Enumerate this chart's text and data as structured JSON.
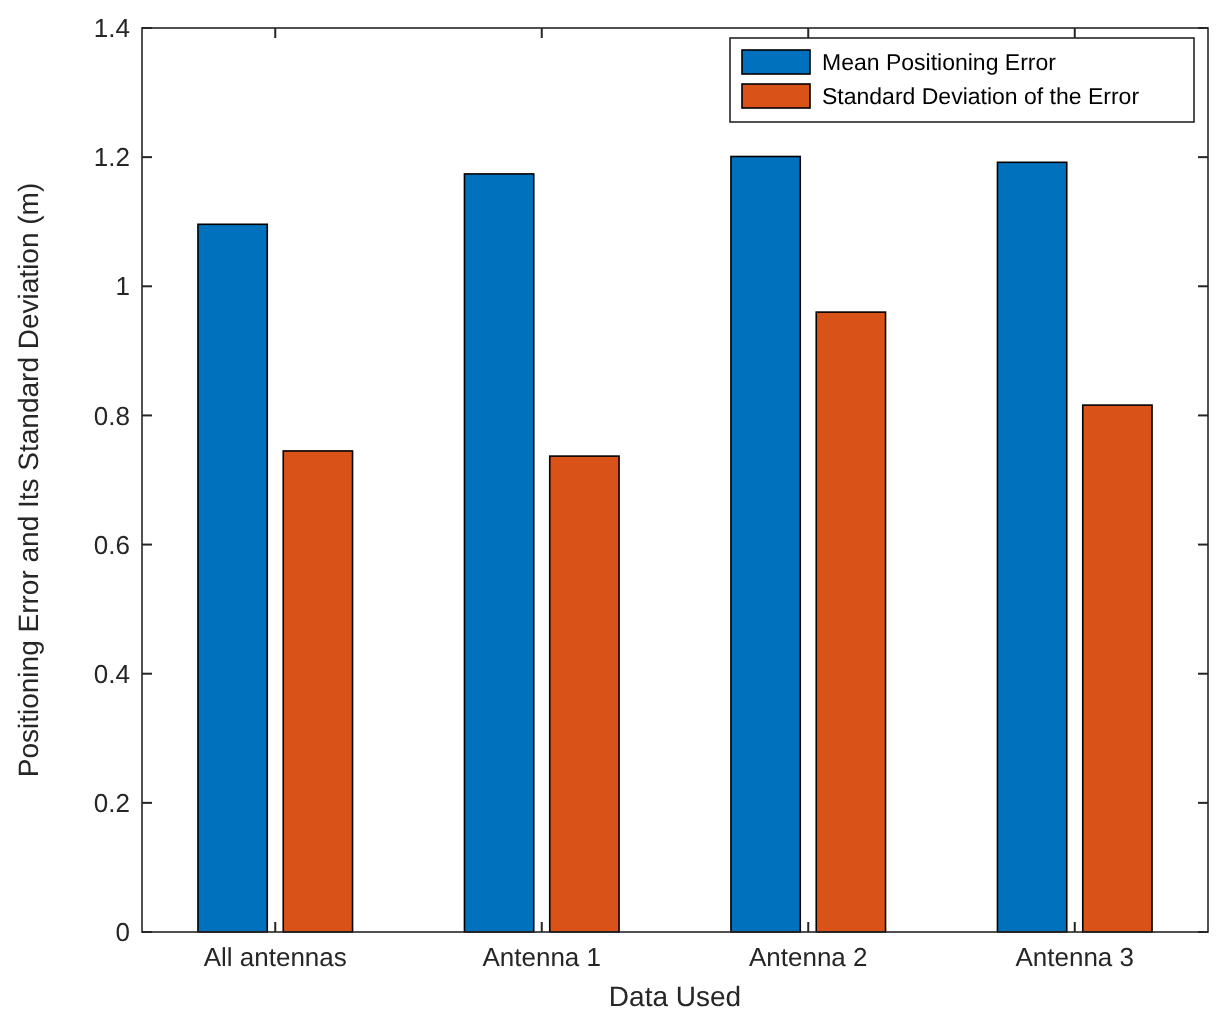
{
  "chart_data": {
    "type": "bar",
    "xlabel": "Data Used",
    "ylabel": "Positioning Error and Its Standard Deviation (m)",
    "categories": [
      "All antennas",
      "Antenna 1",
      "Antenna 2",
      "Antenna 3"
    ],
    "series": [
      {
        "name": "Mean Positioning Error",
        "color": "#0072bd",
        "values": [
          1.096,
          1.174,
          1.201,
          1.192
        ]
      },
      {
        "name": "Standard Deviation of the Error",
        "color": "#d95319",
        "values": [
          0.745,
          0.737,
          0.96,
          0.816
        ]
      }
    ],
    "ylim": [
      0,
      1.4
    ],
    "yticks": [
      0,
      0.2,
      0.4,
      0.6,
      {
        "value": 0.8,
        "label": "0.8"
      },
      1,
      1.2,
      1.4
    ],
    "grid": false,
    "legend": "top right"
  }
}
